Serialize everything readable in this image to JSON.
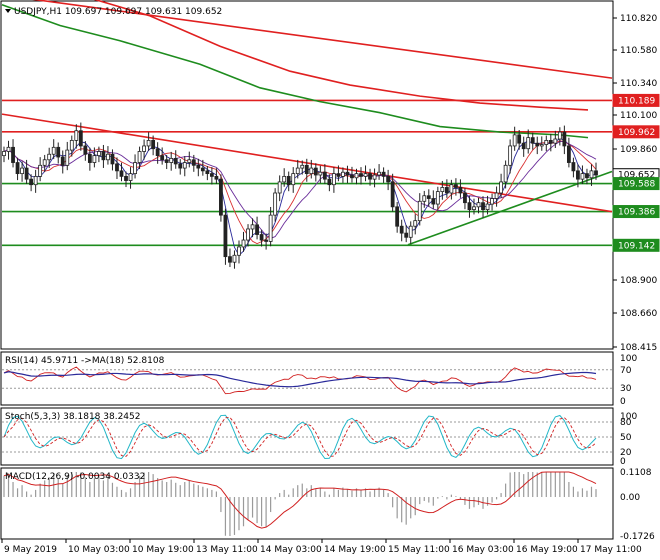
{
  "header": {
    "symbol_line": "USDJPY,H1  109.697 109.697 109.631 109.652"
  },
  "colors": {
    "price_up": "#222222",
    "ma_fast": "#2a2a9a",
    "ma_mid": "#d93030",
    "ma_slow": "#6a2d9a",
    "trend_red": "#e02020",
    "trend_green": "#1e8c1e",
    "sma_green": "#1e8c1e",
    "price_box_black": "#000000",
    "price_box_red": "#e02020",
    "price_box_green": "#1e8c1e",
    "rsi_line": "#d12020",
    "rsi_ma": "#2a2a9a",
    "stoch_main": "#23b7c8",
    "stoch_signal": "#d12020",
    "macd_hist": "#9a9a9a",
    "macd_signal": "#d12020"
  },
  "chart_data": [
    {
      "type": "line",
      "panel": "price",
      "ylim": [
        108.4,
        110.9
      ],
      "y_ticks": [
        "110.820",
        "110.580",
        "110.340",
        "110.100",
        "109.860",
        "109.620",
        "109.380",
        "109.140",
        "108.900",
        "108.660",
        "108.415"
      ],
      "x_ticks": [
        "9 May 2019",
        "10 May 03:00",
        "10 May 19:00",
        "13 May 11:00",
        "14 May 03:00",
        "14 May 19:00",
        "15 May 11:00",
        "16 May 03:00",
        "16 May 19:00",
        "17 May 11:00"
      ],
      "price_labels": [
        {
          "text": "110.189",
          "value": 110.189,
          "style": "red"
        },
        {
          "text": "109.962",
          "value": 109.962,
          "style": "red"
        },
        {
          "text": "109.652",
          "value": 109.652,
          "style": "black"
        },
        {
          "text": "109.588",
          "value": 109.588,
          "style": "green"
        },
        {
          "text": "109.386",
          "value": 109.386,
          "style": "green"
        },
        {
          "text": "109.142",
          "value": 109.142,
          "style": "green"
        }
      ],
      "horizontal_levels": [
        {
          "value": 110.189,
          "color": "red"
        },
        {
          "value": 109.962,
          "color": "red"
        },
        {
          "value": 109.588,
          "color": "green"
        },
        {
          "value": 109.386,
          "color": "green"
        },
        {
          "value": 109.142,
          "color": "green"
        }
      ],
      "close": [
        109.82,
        109.85,
        109.74,
        109.66,
        109.7,
        109.62,
        109.58,
        109.64,
        109.72,
        109.76,
        109.8,
        109.85,
        109.78,
        109.72,
        109.83,
        109.9,
        109.97,
        109.86,
        109.8,
        109.74,
        109.79,
        109.82,
        109.76,
        109.8,
        109.73,
        109.68,
        109.64,
        109.61,
        109.66,
        109.74,
        109.82,
        109.86,
        109.9,
        109.84,
        109.79,
        109.76,
        109.74,
        109.77,
        109.73,
        109.7,
        109.74,
        109.76,
        109.72,
        109.7,
        109.68,
        109.66,
        109.64,
        109.62,
        109.36,
        109.06,
        109.02,
        109.07,
        109.13,
        109.18,
        109.26,
        109.29,
        109.22,
        109.18,
        109.17,
        109.36,
        109.52,
        109.6,
        109.64,
        109.58,
        109.66,
        109.7,
        109.72,
        109.66,
        109.7,
        109.65,
        109.67,
        109.62,
        109.58,
        109.66,
        109.64,
        109.67,
        109.65,
        109.63,
        109.66,
        109.64,
        109.66,
        109.62,
        109.65,
        109.67,
        109.64,
        109.6,
        109.42,
        109.28,
        109.23,
        109.2,
        109.28,
        109.32,
        109.46,
        109.5,
        109.48,
        109.44,
        109.53,
        109.56,
        109.52,
        109.58,
        109.56,
        109.52,
        109.45,
        109.4,
        109.42,
        109.45,
        109.4,
        109.44,
        109.48,
        109.52,
        109.6,
        109.72,
        109.86,
        109.94,
        109.88,
        109.84,
        109.92,
        109.88,
        109.86,
        109.87,
        109.9,
        109.88,
        109.91,
        109.96,
        109.86,
        109.74,
        109.68,
        109.62,
        109.66,
        109.63,
        109.68,
        109.65
      ]
    },
    {
      "type": "line",
      "panel": "rsi",
      "title": "RSI(14) 45.9711  ->MA(18) 52.8108",
      "y_ticks": [
        "100",
        "70",
        "30",
        "0"
      ],
      "ylim": [
        0,
        100
      ],
      "rsi_value": 45.9711,
      "ma_value": 52.8108
    },
    {
      "type": "line",
      "panel": "stochastic",
      "title": "Stoch(5,3,3) 38.1818 38.2452",
      "y_ticks": [
        "100",
        "80",
        "50",
        "20",
        "0"
      ],
      "ylim": [
        0,
        100
      ],
      "main_value": 38.1818,
      "signal_value": 38.2452
    },
    {
      "type": "bar",
      "panel": "macd",
      "title": "MACD(12,26,9) -0.0034 0.0332",
      "y_ticks": [
        "0.1108",
        "0.00",
        "-0.1726"
      ],
      "ylim": [
        -0.1726,
        0.1108
      ],
      "macd_value": -0.0034,
      "signal_value": 0.0332
    }
  ]
}
